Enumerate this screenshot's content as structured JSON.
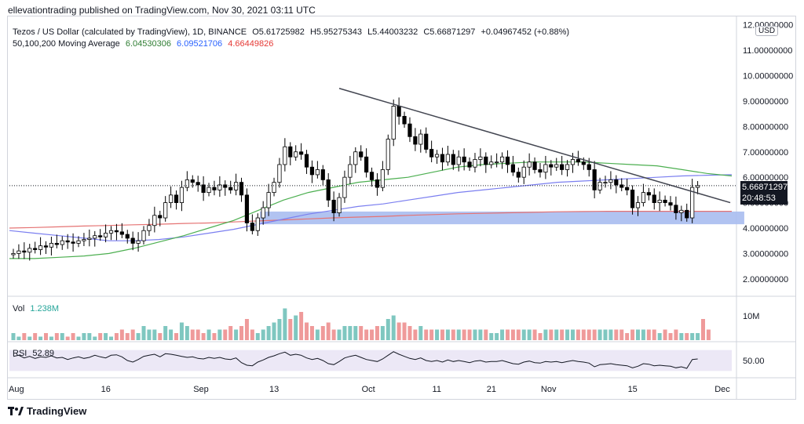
{
  "header": {
    "published": "ellevationtrading published on TradingView.com, Nov 30, 2021 03:11 UTC"
  },
  "legend": {
    "symbol": "Tezos / US Dollar (calculated by TradingView), 1D, BINANCE",
    "open": "O5.61725982",
    "high": "H5.95275343",
    "low": "L5.44003232",
    "close": "C5.66871297",
    "change": "+0.04967452 (+0.88%)",
    "ma_title": "50,100,200 Moving Average",
    "ma50": "6.04530306",
    "ma100": "6.09521706",
    "ma200": "4.66449826",
    "vol_label": "Vol",
    "vol_value": "1.238M",
    "rsi_label": "RSI",
    "rsi_value": "52.89"
  },
  "price_tag": {
    "price": "5.66871297",
    "countdown": "20:48:53"
  },
  "currency": "USD",
  "brand": "TradingView",
  "colors": {
    "up": "#ffffff",
    "down": "#000000",
    "wick": "#000000",
    "ma50": "#4caf50",
    "ma100": "#7b7ff0",
    "ma200": "#e57373",
    "support_zone": "#a8bdf0",
    "trendline": "#434651",
    "vol_up": "#7fc7c0",
    "vol_down": "#ef9a9a",
    "rsi_band": "#ece8f6"
  },
  "chart_data": {
    "type": "candlestick",
    "title": "Tezos / US Dollar, 1D, BINANCE",
    "y_ticks": [
      "12.00000000",
      "11.00000000",
      "10.00000000",
      "9.00000000",
      "8.00000000",
      "7.00000000",
      "6.00000000",
      "5.00000000",
      "4.00000000",
      "3.00000000",
      "2.00000000"
    ],
    "y_tick_values": [
      12,
      11,
      10,
      9,
      8,
      7,
      6,
      5,
      4,
      3,
      2
    ],
    "ylim": [
      1.5,
      12.3
    ],
    "x_ticks": [
      "Aug",
      "16",
      "Sep",
      "13",
      "Oct",
      "11",
      "21",
      "Nov",
      "15",
      "Dec"
    ],
    "x_tick_index": [
      0,
      17,
      34,
      48,
      65,
      78,
      88,
      98,
      114,
      130
    ],
    "vol_tick": "10M",
    "rsi_tick": "50.00",
    "closes": [
      3.0,
      3.1,
      3.05,
      3.2,
      3.15,
      3.3,
      3.25,
      3.4,
      3.35,
      3.5,
      3.45,
      3.4,
      3.5,
      3.55,
      3.6,
      3.7,
      3.65,
      3.8,
      3.9,
      3.85,
      3.75,
      3.6,
      3.4,
      3.5,
      3.9,
      4.1,
      4.5,
      4.4,
      5.0,
      5.3,
      5.0,
      5.6,
      5.9,
      5.8,
      5.7,
      5.4,
      5.6,
      5.5,
      5.7,
      5.6,
      5.5,
      5.8,
      5.3,
      4.2,
      3.9,
      4.4,
      4.8,
      5.4,
      5.8,
      6.5,
      7.2,
      6.8,
      7.0,
      6.9,
      6.4,
      6.1,
      6.3,
      5.9,
      5.1,
      4.6,
      5.2,
      6.0,
      6.5,
      7.0,
      6.8,
      6.2,
      5.9,
      5.6,
      6.3,
      7.5,
      8.8,
      8.4,
      8.1,
      7.6,
      7.3,
      7.7,
      7.1,
      6.8,
      6.9,
      6.6,
      6.9,
      6.5,
      6.8,
      6.6,
      6.4,
      6.7,
      6.8,
      6.5,
      6.6,
      6.6,
      6.8,
      6.5,
      6.2,
      6.0,
      6.4,
      6.6,
      6.3,
      6.2,
      6.5,
      6.4,
      6.5,
      6.3,
      6.5,
      6.7,
      6.6,
      6.5,
      6.3,
      5.5,
      5.8,
      5.8,
      5.9,
      5.7,
      5.6,
      5.5,
      4.8,
      5.0,
      5.4,
      5.3,
      5.0,
      5.1,
      5.0,
      4.9,
      4.6,
      4.7,
      4.4,
      5.6,
      5.67
    ],
    "series": [
      {
        "name": "MA 50",
        "values": [
          2.8,
          2.8,
          2.85,
          2.9,
          3.0,
          3.2,
          3.45,
          3.7,
          4.0,
          4.3,
          4.7,
          5.1,
          5.4,
          5.6,
          5.8,
          5.9,
          6.0,
          6.2,
          6.4,
          6.5,
          6.55,
          6.6,
          6.6,
          6.6,
          6.55,
          6.5,
          6.45,
          6.3,
          6.15,
          6.05
        ]
      },
      {
        "name": "MA 100",
        "values": [
          3.9,
          3.8,
          3.7,
          3.6,
          3.5,
          3.5,
          3.55,
          3.65,
          3.8,
          3.95,
          4.15,
          4.35,
          4.55,
          4.7,
          4.85,
          4.95,
          5.1,
          5.25,
          5.4,
          5.5,
          5.6,
          5.7,
          5.8,
          5.85,
          5.9,
          5.95,
          6.0,
          6.05,
          6.08,
          6.1
        ]
      },
      {
        "name": "MA 200",
        "values": [
          4.0,
          4.02,
          4.05,
          4.08,
          4.1,
          4.13,
          4.15,
          4.18,
          4.2,
          4.24,
          4.28,
          4.32,
          4.36,
          4.4,
          4.43,
          4.46,
          4.5,
          4.53,
          4.56,
          4.58,
          4.6,
          4.62,
          4.64,
          4.65,
          4.66,
          4.66,
          4.66,
          4.66,
          4.66,
          4.66
        ]
      }
    ],
    "trendline": {
      "start": [
        60,
        9.5
      ],
      "end": [
        132,
        5.0
      ]
    },
    "support_zone": {
      "from_index": 46,
      "to_index": 134,
      "low": 4.15,
      "high": 4.65
    },
    "current_price": 5.66871297,
    "volume": [
      2,
      1,
      2,
      1,
      2,
      1,
      2,
      1,
      2,
      2,
      1,
      2,
      1,
      2,
      2,
      1,
      2,
      2,
      1,
      2,
      3,
      2,
      3,
      2,
      4,
      3,
      3,
      2,
      4,
      3,
      2,
      5,
      4,
      3,
      3,
      2,
      3,
      2,
      3,
      3,
      4,
      3,
      4,
      6,
      3,
      2,
      3,
      4,
      5,
      6,
      9,
      6,
      7,
      8,
      5,
      4,
      3,
      4,
      5,
      3,
      3,
      4,
      4,
      4,
      4,
      3,
      3,
      4,
      4,
      6,
      7,
      5,
      5,
      4,
      3,
      4,
      3,
      3,
      3,
      3,
      3,
      3,
      3,
      3,
      3,
      3,
      3,
      3,
      2,
      2,
      3,
      3,
      3,
      3,
      3,
      3,
      3,
      2,
      3,
      3,
      3,
      3,
      3,
      3,
      3,
      3,
      3,
      3,
      3,
      3,
      3,
      3,
      3,
      2,
      3,
      3,
      3,
      3,
      3,
      2,
      3,
      2,
      3,
      2,
      2,
      2,
      2,
      6,
      3
    ],
    "rsi": [
      58,
      60,
      55,
      58,
      54,
      57,
      56,
      59,
      55,
      56,
      52,
      55,
      57,
      54,
      56,
      60,
      57,
      55,
      60,
      61,
      57,
      50,
      47,
      52,
      58,
      60,
      62,
      57,
      63,
      62,
      60,
      58,
      56,
      57,
      54,
      53,
      56,
      54,
      56,
      53,
      52,
      55,
      46,
      41,
      40,
      47,
      51,
      56,
      59,
      63,
      66,
      60,
      62,
      60,
      55,
      52,
      54,
      50,
      44,
      42,
      48,
      55,
      58,
      60,
      56,
      52,
      50,
      48,
      53,
      60,
      67,
      62,
      58,
      54,
      52,
      55,
      50,
      48,
      50,
      47,
      51,
      48,
      50,
      48,
      46,
      49,
      50,
      47,
      48,
      48,
      50,
      47,
      44,
      43,
      47,
      49,
      46,
      45,
      48,
      47,
      48,
      46,
      48,
      50,
      48,
      47,
      45,
      38,
      42,
      43,
      44,
      42,
      41,
      40,
      36,
      39,
      44,
      43,
      40,
      41,
      40,
      39,
      36,
      38,
      35,
      52,
      53
    ]
  }
}
